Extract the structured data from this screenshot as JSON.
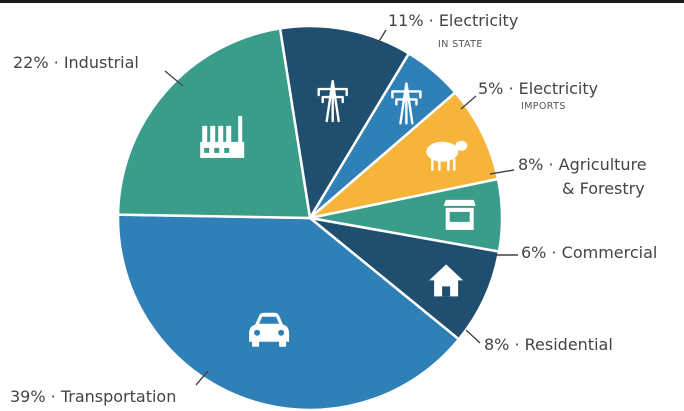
{
  "chart_data": {
    "type": "pie",
    "slices": [
      {
        "percent_label": "11%",
        "value": 11,
        "name": "Electricity",
        "sublabel": "IN STATE",
        "color": "#1f4e6e",
        "icon": "power-pylon-icon"
      },
      {
        "percent_label": "5%",
        "value": 5,
        "name": "Electricity",
        "sublabel": "IMPORTS",
        "color": "#2f80b7",
        "icon": "power-pylon-icon"
      },
      {
        "percent_label": "8%",
        "value": 8,
        "name": "Agriculture & Forestry",
        "sublabel": "",
        "color": "#f6b43a",
        "icon": "sheep-icon"
      },
      {
        "percent_label": "6%",
        "value": 6,
        "name": "Commercial",
        "sublabel": "",
        "color": "#3a9d8a",
        "icon": "storefront-icon"
      },
      {
        "percent_label": "8%",
        "value": 8,
        "name": "Residential",
        "sublabel": "",
        "color": "#1f4e6e",
        "icon": "house-icon"
      },
      {
        "percent_label": "39%",
        "value": 39,
        "name": "Transportation",
        "sublabel": "",
        "color": "#2f80b7",
        "icon": "car-icon"
      },
      {
        "percent_label": "22%",
        "value": 22,
        "name": "Industrial",
        "sublabel": "",
        "color": "#3a9d8a",
        "icon": "factory-icon"
      }
    ],
    "separator": "·",
    "slice_border_color": "#ffffff",
    "text_color": "#444444"
  }
}
